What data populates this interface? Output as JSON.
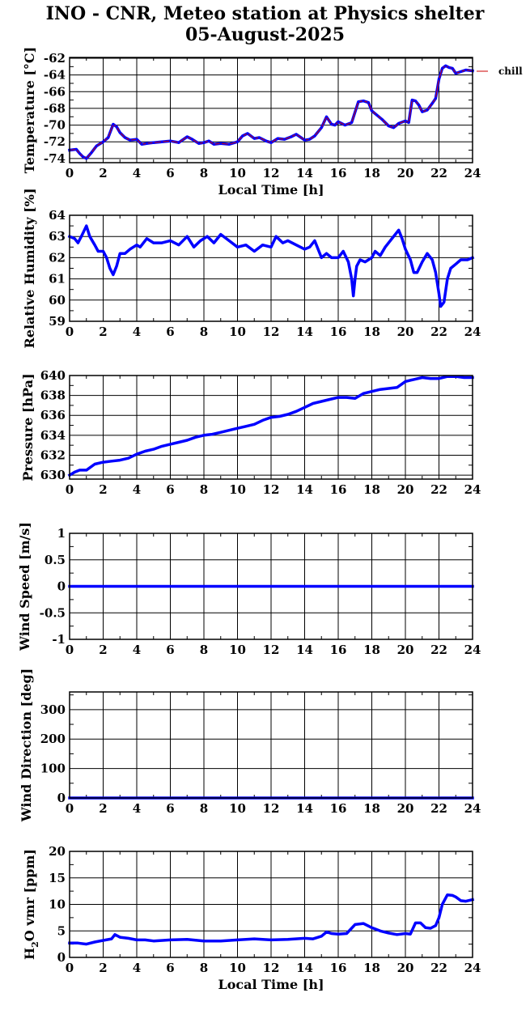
{
  "title": {
    "line1": "INO - CNR, Meteo station at Physics shelter",
    "line2": "05-August-2025"
  },
  "colors": {
    "series": "#0000ff",
    "chill": "#cc0000",
    "axis": "#000000"
  },
  "x_axis": {
    "label": "Local Time [h]",
    "range": [
      0,
      24
    ],
    "ticks": [
      "0",
      "2",
      "4",
      "6",
      "8",
      "10",
      "12",
      "14",
      "16",
      "18",
      "20",
      "22",
      "24"
    ]
  },
  "chart_data": [
    {
      "type": "line",
      "ylabel": "Temperature [°C]",
      "ylim": [
        -74.5,
        -61.9
      ],
      "yticks": [
        -74,
        -72,
        -70,
        -68,
        -66,
        -64,
        -62
      ],
      "ytick_labels": [
        "-74",
        "-72",
        "-70",
        "-68",
        "-66",
        "-64",
        "-62"
      ],
      "xlabel": "Local Time [h]",
      "legend": "chill",
      "legend_position": "right",
      "grid": true,
      "series": [
        {
          "color": "#0000ff",
          "x": [
            0,
            0.4,
            0.6,
            0.8,
            1.0,
            1.3,
            1.6,
            2.0,
            2.3,
            2.6,
            2.8,
            3.0,
            3.3,
            3.6,
            4.0,
            4.3,
            4.6,
            5.0,
            5.5,
            6.0,
            6.5,
            7.0,
            7.3,
            7.7,
            8.0,
            8.3,
            8.6,
            9.0,
            9.5,
            10.0,
            10.3,
            10.6,
            11.0,
            11.3,
            11.7,
            12.0,
            12.4,
            12.8,
            13.2,
            13.5,
            14.0,
            14.3,
            14.6,
            15.0,
            15.3,
            15.6,
            15.8,
            16.0,
            16.4,
            16.8,
            17.2,
            17.5,
            17.8,
            18.0,
            18.3,
            18.6,
            19.0,
            19.3,
            19.6,
            20.0,
            20.2,
            20.4,
            20.6,
            20.8,
            21.0,
            21.3,
            21.6,
            21.8,
            22.0,
            22.2,
            22.4,
            22.6,
            22.8,
            23.0,
            23.3,
            23.6,
            24.0
          ],
          "y": [
            -73.0,
            -72.9,
            -73.4,
            -73.8,
            -74.0,
            -73.3,
            -72.5,
            -72.0,
            -71.5,
            -69.9,
            -70.2,
            -70.9,
            -71.5,
            -71.8,
            -71.7,
            -72.3,
            -72.2,
            -72.1,
            -72.0,
            -71.9,
            -72.1,
            -71.4,
            -71.7,
            -72.2,
            -72.1,
            -71.9,
            -72.3,
            -72.2,
            -72.3,
            -72.0,
            -71.3,
            -71.0,
            -71.6,
            -71.5,
            -71.9,
            -72.1,
            -71.6,
            -71.7,
            -71.4,
            -71.1,
            -71.8,
            -71.7,
            -71.3,
            -70.3,
            -69.0,
            -69.9,
            -70.0,
            -69.6,
            -70.0,
            -69.7,
            -67.2,
            -67.1,
            -67.3,
            -68.3,
            -68.8,
            -69.3,
            -70.1,
            -70.3,
            -69.8,
            -69.5,
            -69.7,
            -67.0,
            -67.1,
            -67.6,
            -68.4,
            -68.2,
            -67.4,
            -66.8,
            -64.5,
            -63.2,
            -62.9,
            -63.1,
            -63.2,
            -63.8,
            -63.6,
            -63.4,
            -63.5
          ]
        }
      ]
    },
    {
      "type": "line",
      "ylabel": "Relative Humidity [%]",
      "ylim": [
        59,
        64
      ],
      "yticks": [
        59,
        60,
        61,
        62,
        63,
        64
      ],
      "ytick_labels": [
        "59",
        "60",
        "61",
        "62",
        "63",
        "64"
      ],
      "xlabel": "",
      "grid": true,
      "series": [
        {
          "color": "#0000ff",
          "x": [
            0,
            0.3,
            0.5,
            0.7,
            1.0,
            1.2,
            1.5,
            1.7,
            2.0,
            2.2,
            2.4,
            2.6,
            2.8,
            3.0,
            3.3,
            3.6,
            4.0,
            4.2,
            4.6,
            5.0,
            5.5,
            6.0,
            6.5,
            7.0,
            7.4,
            7.8,
            8.2,
            8.6,
            9.0,
            9.5,
            10.0,
            10.5,
            11.0,
            11.5,
            12.0,
            12.3,
            12.7,
            13.0,
            13.5,
            14.0,
            14.3,
            14.6,
            15.0,
            15.3,
            15.6,
            16.0,
            16.3,
            16.6,
            16.8,
            16.9,
            17.0,
            17.1,
            17.3,
            17.6,
            18.0,
            18.2,
            18.5,
            18.8,
            19.1,
            19.4,
            19.6,
            19.8,
            20.0,
            20.3,
            20.5,
            20.7,
            21.0,
            21.3,
            21.6,
            21.8,
            22.0,
            22.1,
            22.3,
            22.5,
            22.7,
            23.0,
            23.3,
            23.7,
            24.0
          ],
          "y": [
            63.0,
            62.9,
            62.7,
            63.0,
            63.5,
            63.0,
            62.6,
            62.3,
            62.3,
            62.0,
            61.5,
            61.2,
            61.6,
            62.2,
            62.2,
            62.4,
            62.6,
            62.5,
            62.9,
            62.7,
            62.7,
            62.8,
            62.6,
            63.0,
            62.5,
            62.8,
            63.0,
            62.7,
            63.1,
            62.8,
            62.5,
            62.6,
            62.3,
            62.6,
            62.5,
            63.0,
            62.7,
            62.8,
            62.6,
            62.4,
            62.5,
            62.8,
            62.0,
            62.2,
            62.0,
            62.0,
            62.3,
            61.8,
            61.0,
            60.2,
            61.0,
            61.6,
            61.9,
            61.8,
            62.0,
            62.3,
            62.1,
            62.5,
            62.8,
            63.1,
            63.3,
            62.9,
            62.4,
            61.9,
            61.3,
            61.3,
            61.8,
            62.2,
            61.9,
            61.3,
            60.3,
            59.7,
            59.9,
            61.0,
            61.5,
            61.7,
            61.9,
            61.9,
            62.0
          ]
        }
      ]
    },
    {
      "type": "line",
      "ylabel": "Pressure [hPa]",
      "ylim": [
        629.6,
        640
      ],
      "yticks": [
        630,
        632,
        634,
        636,
        638,
        640
      ],
      "ytick_labels": [
        "630",
        "632",
        "634",
        "636",
        "638",
        "640"
      ],
      "xlabel": "",
      "grid": true,
      "series": [
        {
          "color": "#0000ff",
          "x": [
            0,
            0.3,
            0.6,
            1.0,
            1.5,
            2.0,
            2.5,
            3.0,
            3.5,
            4.0,
            4.5,
            5.0,
            5.5,
            6.0,
            6.5,
            7.0,
            7.5,
            8.0,
            8.5,
            9.0,
            9.5,
            10.0,
            10.5,
            11.0,
            11.5,
            12.0,
            12.5,
            13.0,
            13.5,
            14.0,
            14.5,
            15.0,
            15.5,
            16.0,
            16.5,
            17.0,
            17.5,
            18.0,
            18.5,
            19.0,
            19.5,
            20.0,
            20.5,
            21.0,
            21.5,
            22.0,
            22.5,
            23.0,
            23.5,
            24.0
          ],
          "y": [
            630.0,
            630.3,
            630.5,
            630.5,
            631.1,
            631.3,
            631.4,
            631.5,
            631.7,
            632.1,
            632.4,
            632.6,
            632.9,
            633.1,
            633.3,
            633.5,
            633.8,
            634.0,
            634.1,
            634.3,
            634.5,
            634.7,
            634.9,
            635.1,
            635.5,
            635.8,
            635.9,
            636.1,
            636.4,
            636.8,
            637.2,
            637.4,
            637.6,
            637.8,
            637.8,
            637.7,
            638.2,
            638.4,
            638.6,
            638.7,
            638.8,
            639.4,
            639.6,
            639.8,
            639.7,
            639.7,
            639.9,
            639.9,
            639.8,
            639.8
          ]
        }
      ]
    },
    {
      "type": "line",
      "ylabel": "Wind Speed [m/s]",
      "ylim": [
        -1,
        1
      ],
      "yticks": [
        -1,
        -0.5,
        0,
        0.5,
        1
      ],
      "ytick_labels": [
        "-1",
        "-0.5",
        "0",
        "0.5",
        "1"
      ],
      "xlabel": "",
      "grid": true,
      "series": [
        {
          "color": "#0000ff",
          "x": [
            0,
            24
          ],
          "y": [
            0,
            0
          ]
        }
      ]
    },
    {
      "type": "line",
      "ylabel": "Wind Direction [deg]",
      "ylim": [
        0,
        360
      ],
      "yticks": [
        0,
        100,
        200,
        300
      ],
      "ytick_labels": [
        "0",
        "100",
        "200",
        "300"
      ],
      "xlabel": "",
      "grid": true,
      "series": [
        {
          "color": "#0000ff",
          "x": [
            0,
            24
          ],
          "y": [
            0,
            0
          ]
        }
      ]
    },
    {
      "type": "line",
      "ylabel": "H2O vmr [ppm]",
      "ylabel_parts": [
        "H",
        "2",
        "O vmr [ppm]"
      ],
      "ylim": [
        0,
        20
      ],
      "yticks": [
        0,
        5,
        10,
        15,
        20
      ],
      "ytick_labels": [
        "0",
        "5",
        "10",
        "15",
        "20"
      ],
      "xlabel": "Local Time [h]",
      "grid": true,
      "series": [
        {
          "color": "#0000ff",
          "x": [
            0,
            0.5,
            1.0,
            1.5,
            2.0,
            2.5,
            2.7,
            3.0,
            3.5,
            4.0,
            4.5,
            5.0,
            6.0,
            7.0,
            8.0,
            9.0,
            10.0,
            11.0,
            12.0,
            13.0,
            14.0,
            14.5,
            15.0,
            15.3,
            15.6,
            16.0,
            16.5,
            17.0,
            17.5,
            18.0,
            18.5,
            19.0,
            19.5,
            20.0,
            20.3,
            20.6,
            20.9,
            21.2,
            21.5,
            21.8,
            22.0,
            22.2,
            22.5,
            22.8,
            23.0,
            23.3,
            23.6,
            24.0
          ],
          "y": [
            2.7,
            2.7,
            2.5,
            2.9,
            3.2,
            3.5,
            4.3,
            3.8,
            3.6,
            3.3,
            3.3,
            3.1,
            3.3,
            3.4,
            3.1,
            3.1,
            3.3,
            3.5,
            3.3,
            3.4,
            3.6,
            3.5,
            4.0,
            4.8,
            4.5,
            4.4,
            4.5,
            6.2,
            6.4,
            5.6,
            5.0,
            4.6,
            4.3,
            4.5,
            4.4,
            6.5,
            6.5,
            5.6,
            5.5,
            6.0,
            7.5,
            10.0,
            11.8,
            11.7,
            11.4,
            10.7,
            10.6,
            10.9
          ]
        }
      ]
    }
  ]
}
